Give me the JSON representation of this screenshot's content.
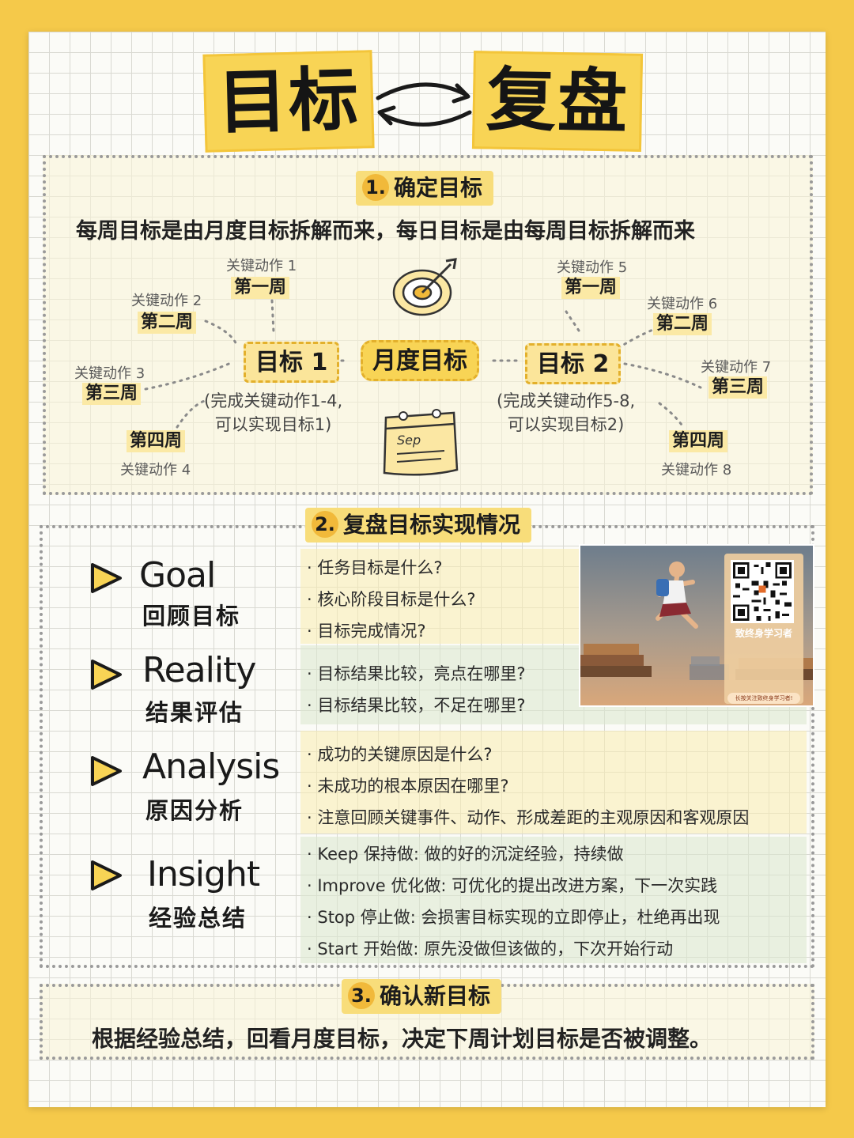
{
  "title": {
    "left": "目标",
    "right": "复盘"
  },
  "section1": {
    "num": "1.",
    "heading": "确定目标",
    "lead": "每周目标是由月度目标拆解而来，每日目标是由每周目标拆解而来",
    "center": "月度目标",
    "left_goal": {
      "label": "目标 1",
      "note_line1": "(完成关键动作1-4,",
      "note_line2": "可以实现目标1)",
      "weeks": [
        {
          "action": "关键动作 1",
          "week": "第一周"
        },
        {
          "action": "关键动作 2",
          "week": "第二周"
        },
        {
          "action": "关键动作 3",
          "week": "第三周"
        },
        {
          "action": "关键动作 4",
          "week": "第四周"
        }
      ]
    },
    "right_goal": {
      "label": "目标 2",
      "note_line1": "(完成关键动作5-8,",
      "note_line2": "可以实现目标2)",
      "weeks": [
        {
          "action": "关键动作 5",
          "week": "第一周"
        },
        {
          "action": "关键动作 6",
          "week": "第二周"
        },
        {
          "action": "关键动作 7",
          "week": "第三周"
        },
        {
          "action": "关键动作 8",
          "week": "第四周"
        }
      ]
    },
    "calendar_text": "Sep"
  },
  "section2": {
    "num": "2.",
    "heading": "复盘目标实现情况",
    "items": [
      {
        "en": "Goal",
        "cn": "回顾目标",
        "questions": [
          "任务目标是什么?",
          "核心阶段目标是什么?",
          "目标完成情况?"
        ]
      },
      {
        "en": "Reality",
        "cn": "结果评估",
        "questions": [
          "目标结果比较，亮点在哪里?",
          "目标结果比较，不足在哪里?"
        ]
      },
      {
        "en": "Analysis",
        "cn": "原因分析",
        "questions": [
          "成功的关键原因是什么?",
          "未成功的根本原因在哪里?",
          "注意回顾关键事件、动作、形成差距的主观原因和客观原因"
        ]
      },
      {
        "en": "Insight",
        "cn": "经验总结",
        "questions": [
          "Keep 保持做: 做的好的沉淀经验，持续做",
          "Improve 优化做: 可优化的提出改进方案，下一次实践",
          "Stop 停止做: 会损害目标实现的立即停止，杜绝再出现",
          "Start 开始做: 原先没做但该做的，下次开始行动"
        ]
      }
    ],
    "ad": {
      "title": "致终身学习者",
      "button": "长按关注致终身学习者!"
    }
  },
  "section3": {
    "num": "3.",
    "heading": "确认新目标",
    "text": "根据经验总结，回看月度目标，决定下周计划目标是否被调整。"
  },
  "colors": {
    "background": "#f5c94a",
    "highlight": "#f8d455",
    "accent": "#f1b93a"
  }
}
